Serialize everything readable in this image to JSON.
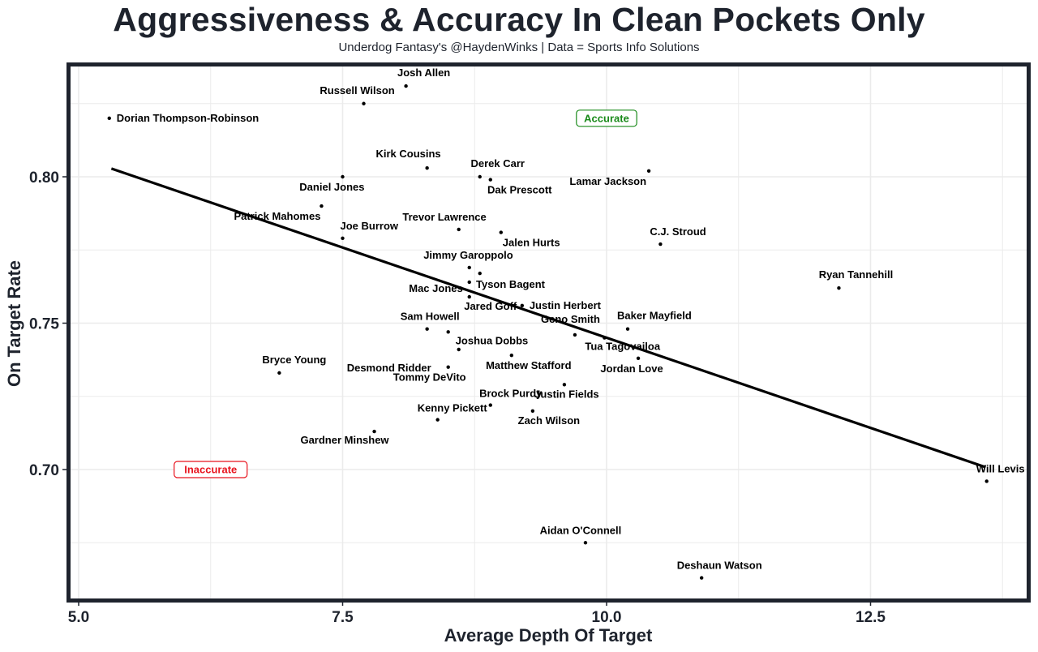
{
  "title": "Aggressiveness & Accuracy In Clean Pockets Only",
  "subtitle": "Underdog Fantasy's @HaydenWinks | Data = Sports Info Solutions",
  "colors": {
    "frame": "#1e232d",
    "grid": "#ebebeb",
    "point": "#000000",
    "trend": "#000000",
    "accurate": "#1a8a1a",
    "inaccurate": "#e8141e"
  },
  "chart_data": {
    "type": "scatter",
    "title": "Aggressiveness & Accuracy In Clean Pockets Only",
    "subtitle": "Underdog Fantasy's @HaydenWinks | Data = Sports Info Solutions",
    "xlabel": "Average Depth Of Target",
    "ylabel": "On Target Rate",
    "xlim": [
      4.9,
      14.0
    ],
    "ylim": [
      0.6585,
      0.8405
    ],
    "x_ticks": [
      5.0,
      7.5,
      10.0,
      12.5
    ],
    "x_tick_labels": [
      "5.0",
      "7.5",
      "10.0",
      "12.5"
    ],
    "y_ticks": [
      0.7,
      0.75,
      0.8
    ],
    "y_tick_labels": [
      "0.70",
      "0.75",
      "0.80"
    ],
    "x_minor": [
      6.25,
      8.75,
      11.25,
      13.75
    ],
    "y_minor": [
      0.675,
      0.725,
      0.775,
      0.825
    ],
    "grid": true,
    "legend": "none",
    "points": [
      {
        "name": "Josh Allen",
        "x": 8.1,
        "y": 0.831,
        "pos": "above"
      },
      {
        "name": "Russell Wilson",
        "x": 7.7,
        "y": 0.825,
        "pos": "above"
      },
      {
        "name": "Dorian Thompson-Robinson",
        "x": 5.29,
        "y": 0.82,
        "pos": "right"
      },
      {
        "name": "Kirk Cousins",
        "x": 8.3,
        "y": 0.803,
        "pos": "above-left"
      },
      {
        "name": "Derek Carr",
        "x": 8.8,
        "y": 0.8,
        "pos": "above"
      },
      {
        "name": "Dak Prescott",
        "x": 8.9,
        "y": 0.799,
        "pos": "below"
      },
      {
        "name": "Lamar Jackson",
        "x": 10.4,
        "y": 0.802,
        "pos": "below-left"
      },
      {
        "name": "Daniel Jones",
        "x": 7.5,
        "y": 0.8,
        "pos": "below-left"
      },
      {
        "name": "Patrick Mahomes",
        "x": 7.3,
        "y": 0.79,
        "pos": "below-left"
      },
      {
        "name": "Joe Burrow",
        "x": 7.5,
        "y": 0.779,
        "pos": "above-right"
      },
      {
        "name": "Trevor Lawrence",
        "x": 8.6,
        "y": 0.782,
        "pos": "above-left"
      },
      {
        "name": "Jalen Hurts",
        "x": 9.0,
        "y": 0.781,
        "pos": "below-right"
      },
      {
        "name": "C.J. Stroud",
        "x": 10.51,
        "y": 0.777,
        "pos": "above-right"
      },
      {
        "name": "Jimmy Garoppolo",
        "x": 8.7,
        "y": 0.769,
        "pos": "above-left"
      },
      {
        "name": "Tyson Bagent",
        "x": 8.8,
        "y": 0.767,
        "pos": "none"
      },
      {
        "name": "Mac Jones",
        "x": 8.7,
        "y": 0.764,
        "pos": "right-bagent"
      },
      {
        "name": "Jared Goff",
        "x": 8.7,
        "y": 0.759,
        "pos": "below"
      },
      {
        "name": "Justin Herbert",
        "x": 9.2,
        "y": 0.756,
        "pos": "right"
      },
      {
        "name": "Sam Howell",
        "x": 8.3,
        "y": 0.748,
        "pos": "above-left"
      },
      {
        "name": "Joshua Dobbs",
        "x": 8.5,
        "y": 0.747,
        "pos": "below-right"
      },
      {
        "name": "Desmond Ridder",
        "x": 8.6,
        "y": 0.741,
        "pos": "below-left"
      },
      {
        "name": "Tommy DeVito",
        "x": 8.5,
        "y": 0.735,
        "pos": "below"
      },
      {
        "name": "Matthew Stafford",
        "x": 9.1,
        "y": 0.739,
        "pos": "below"
      },
      {
        "name": "Geno Smith",
        "x": 9.7,
        "y": 0.746,
        "pos": "above-left"
      },
      {
        "name": "Baker Mayfield",
        "x": 10.2,
        "y": 0.748,
        "pos": "above-right"
      },
      {
        "name": "Tua Tagovailoa",
        "x": 9.98,
        "y": 0.745,
        "pos": "below-right"
      },
      {
        "name": "Jordan Love",
        "x": 10.3,
        "y": 0.738,
        "pos": "below"
      },
      {
        "name": "Bryce Young",
        "x": 6.9,
        "y": 0.733,
        "pos": "above-right"
      },
      {
        "name": "Brock Purdy",
        "x": 8.9,
        "y": 0.722,
        "pos": "above"
      },
      {
        "name": "Justin Fields",
        "x": 9.6,
        "y": 0.729,
        "pos": "below"
      },
      {
        "name": "Kenny Pickett",
        "x": 8.4,
        "y": 0.717,
        "pos": "above-left"
      },
      {
        "name": "Zach Wilson",
        "x": 9.3,
        "y": 0.72,
        "pos": "below"
      },
      {
        "name": "Gardner Minshew",
        "x": 7.8,
        "y": 0.713,
        "pos": "below-left"
      },
      {
        "name": "Ryan Tannehill",
        "x": 12.2,
        "y": 0.762,
        "pos": "above"
      },
      {
        "name": "Will Levis",
        "x": 13.6,
        "y": 0.696,
        "pos": "above"
      },
      {
        "name": "Aidan O'Connell",
        "x": 9.8,
        "y": 0.675,
        "pos": "above"
      },
      {
        "name": "Deshaun Watson",
        "x": 10.9,
        "y": 0.663,
        "pos": "above"
      }
    ],
    "trend_line": {
      "x": [
        5.31,
        13.59
      ],
      "y": [
        0.8028,
        0.7008
      ],
      "type": "linear fit"
    },
    "annotations": [
      {
        "text": "Accurate",
        "x": 10.0,
        "y": 0.82,
        "color_key": "accurate"
      },
      {
        "text": "Inaccurate",
        "x": 6.25,
        "y": 0.7,
        "color_key": "inaccurate"
      }
    ]
  }
}
